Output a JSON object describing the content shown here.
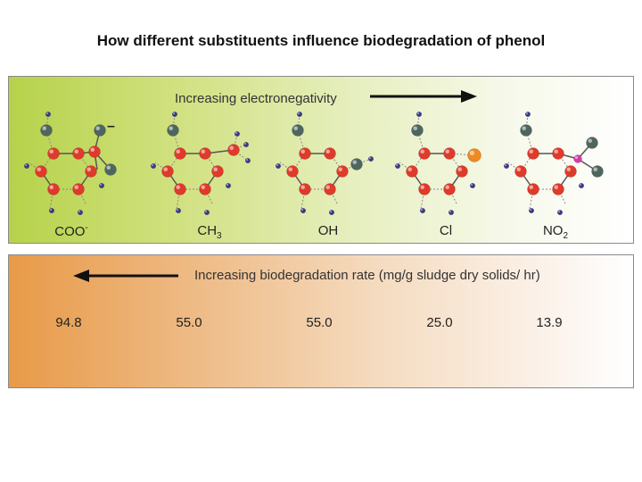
{
  "title": "How different substituents influence biodegradation of phenol",
  "top_panel": {
    "arrow_label": "Increasing electronegativity",
    "groups": [
      {
        "base": "COO",
        "sup": "-",
        "sub": ""
      },
      {
        "base": "CH",
        "sup": "",
        "sub": "3"
      },
      {
        "base": "OH",
        "sup": "",
        "sub": ""
      },
      {
        "base": "Cl",
        "sup": "",
        "sub": ""
      },
      {
        "base": "NO",
        "sup": "",
        "sub": "2"
      }
    ]
  },
  "bottom_panel": {
    "arrow_label": "Increasing biodegradation rate (mg/g sludge dry solids/ hr)",
    "rates": [
      "94.8",
      "55.0",
      "55.0",
      "25.0",
      "13.9"
    ]
  },
  "colors": {
    "carbon": "#e03a2a",
    "oxygen": "#4f6660",
    "hydrogen": "#3a3a8c",
    "chlorine": "#ee8a22",
    "nitrogen": "#d63aa8"
  }
}
